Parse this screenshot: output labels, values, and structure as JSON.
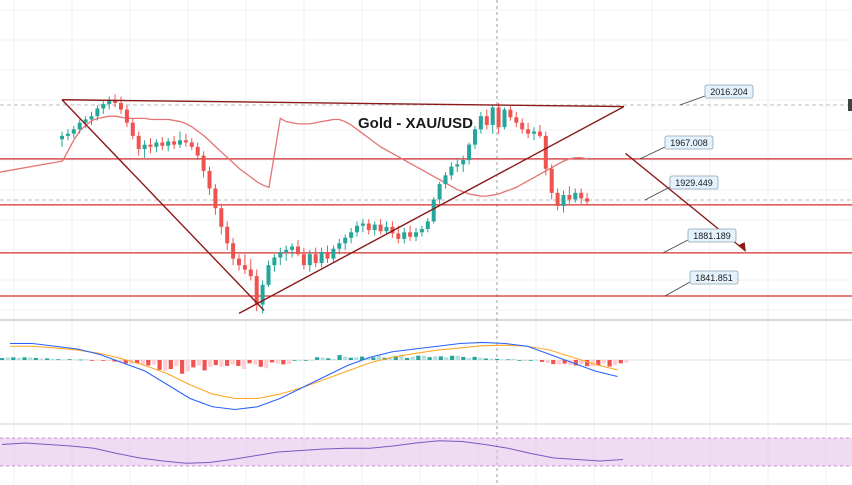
{
  "chart_data": {
    "type": "candlestick",
    "title": "Gold - XAU/USD",
    "candles": [
      {
        "o": 1985,
        "h": 1992,
        "l": 1978,
        "c": 1988
      },
      {
        "o": 1988,
        "h": 1994,
        "l": 1984,
        "c": 1990
      },
      {
        "o": 1990,
        "h": 1997,
        "l": 1986,
        "c": 1994
      },
      {
        "o": 1994,
        "h": 2003,
        "l": 1990,
        "c": 2000
      },
      {
        "o": 2000,
        "h": 2006,
        "l": 1995,
        "c": 2003
      },
      {
        "o": 2003,
        "h": 2010,
        "l": 1998,
        "c": 2006
      },
      {
        "o": 2006,
        "h": 2016,
        "l": 2002,
        "c": 2013
      },
      {
        "o": 2013,
        "h": 2020,
        "l": 2008,
        "c": 2017
      },
      {
        "o": 2017,
        "h": 2024,
        "l": 2012,
        "c": 2021
      },
      {
        "o": 2021,
        "h": 2026,
        "l": 2014,
        "c": 2018
      },
      {
        "o": 2018,
        "h": 2024,
        "l": 2008,
        "c": 2012
      },
      {
        "o": 2012,
        "h": 2016,
        "l": 1996,
        "c": 2000
      },
      {
        "o": 2000,
        "h": 2004,
        "l": 1985,
        "c": 1988
      },
      {
        "o": 1988,
        "h": 1992,
        "l": 1970,
        "c": 1976
      },
      {
        "o": 1976,
        "h": 1984,
        "l": 1968,
        "c": 1980
      },
      {
        "o": 1980,
        "h": 1986,
        "l": 1972,
        "c": 1978
      },
      {
        "o": 1978,
        "h": 1985,
        "l": 1973,
        "c": 1982
      },
      {
        "o": 1982,
        "h": 1987,
        "l": 1975,
        "c": 1979
      },
      {
        "o": 1979,
        "h": 1986,
        "l": 1974,
        "c": 1983
      },
      {
        "o": 1983,
        "h": 1988,
        "l": 1976,
        "c": 1980
      },
      {
        "o": 1980,
        "h": 1992,
        "l": 1977,
        "c": 1984
      },
      {
        "o": 1984,
        "h": 1990,
        "l": 1978,
        "c": 1982
      },
      {
        "o": 1982,
        "h": 1986,
        "l": 1975,
        "c": 1978
      },
      {
        "o": 1978,
        "h": 1982,
        "l": 1966,
        "c": 1970
      },
      {
        "o": 1970,
        "h": 1974,
        "l": 1950,
        "c": 1956
      },
      {
        "o": 1956,
        "h": 1960,
        "l": 1934,
        "c": 1940
      },
      {
        "o": 1940,
        "h": 1944,
        "l": 1916,
        "c": 1922
      },
      {
        "o": 1922,
        "h": 1926,
        "l": 1898,
        "c": 1905
      },
      {
        "o": 1905,
        "h": 1910,
        "l": 1884,
        "c": 1890
      },
      {
        "o": 1890,
        "h": 1895,
        "l": 1870,
        "c": 1876
      },
      {
        "o": 1876,
        "h": 1880,
        "l": 1865,
        "c": 1870
      },
      {
        "o": 1870,
        "h": 1880,
        "l": 1862,
        "c": 1866
      },
      {
        "o": 1866,
        "h": 1876,
        "l": 1856,
        "c": 1860
      },
      {
        "o": 1860,
        "h": 1866,
        "l": 1828,
        "c": 1834
      },
      {
        "o": 1834,
        "h": 1856,
        "l": 1826,
        "c": 1852
      },
      {
        "o": 1852,
        "h": 1874,
        "l": 1850,
        "c": 1870
      },
      {
        "o": 1870,
        "h": 1880,
        "l": 1864,
        "c": 1877
      },
      {
        "o": 1877,
        "h": 1886,
        "l": 1870,
        "c": 1882
      },
      {
        "o": 1882,
        "h": 1888,
        "l": 1874,
        "c": 1884
      },
      {
        "o": 1884,
        "h": 1890,
        "l": 1877,
        "c": 1887
      },
      {
        "o": 1887,
        "h": 1893,
        "l": 1878,
        "c": 1880
      },
      {
        "o": 1880,
        "h": 1886,
        "l": 1866,
        "c": 1870
      },
      {
        "o": 1870,
        "h": 1884,
        "l": 1864,
        "c": 1880
      },
      {
        "o": 1880,
        "h": 1886,
        "l": 1868,
        "c": 1872
      },
      {
        "o": 1872,
        "h": 1886,
        "l": 1868,
        "c": 1882
      },
      {
        "o": 1882,
        "h": 1888,
        "l": 1872,
        "c": 1876
      },
      {
        "o": 1876,
        "h": 1888,
        "l": 1873,
        "c": 1885
      },
      {
        "o": 1885,
        "h": 1894,
        "l": 1880,
        "c": 1890
      },
      {
        "o": 1890,
        "h": 1898,
        "l": 1884,
        "c": 1895
      },
      {
        "o": 1895,
        "h": 1904,
        "l": 1890,
        "c": 1900
      },
      {
        "o": 1900,
        "h": 1910,
        "l": 1896,
        "c": 1906
      },
      {
        "o": 1906,
        "h": 1912,
        "l": 1900,
        "c": 1908
      },
      {
        "o": 1908,
        "h": 1912,
        "l": 1898,
        "c": 1902
      },
      {
        "o": 1902,
        "h": 1910,
        "l": 1897,
        "c": 1907
      },
      {
        "o": 1907,
        "h": 1912,
        "l": 1898,
        "c": 1901
      },
      {
        "o": 1901,
        "h": 1910,
        "l": 1898,
        "c": 1905
      },
      {
        "o": 1905,
        "h": 1910,
        "l": 1895,
        "c": 1899
      },
      {
        "o": 1899,
        "h": 1906,
        "l": 1890,
        "c": 1894
      },
      {
        "o": 1894,
        "h": 1904,
        "l": 1890,
        "c": 1900
      },
      {
        "o": 1900,
        "h": 1906,
        "l": 1892,
        "c": 1896
      },
      {
        "o": 1896,
        "h": 1904,
        "l": 1892,
        "c": 1900
      },
      {
        "o": 1900,
        "h": 1906,
        "l": 1896,
        "c": 1903
      },
      {
        "o": 1903,
        "h": 1913,
        "l": 1900,
        "c": 1910
      },
      {
        "o": 1910,
        "h": 1932,
        "l": 1908,
        "c": 1930
      },
      {
        "o": 1930,
        "h": 1946,
        "l": 1926,
        "c": 1944
      },
      {
        "o": 1944,
        "h": 1955,
        "l": 1940,
        "c": 1952
      },
      {
        "o": 1952,
        "h": 1964,
        "l": 1948,
        "c": 1960
      },
      {
        "o": 1960,
        "h": 1968,
        "l": 1955,
        "c": 1962
      },
      {
        "o": 1962,
        "h": 1970,
        "l": 1955,
        "c": 1966
      },
      {
        "o": 1966,
        "h": 1982,
        "l": 1962,
        "c": 1980
      },
      {
        "o": 1980,
        "h": 1997,
        "l": 1976,
        "c": 1994
      },
      {
        "o": 1994,
        "h": 2010,
        "l": 1990,
        "c": 2006
      },
      {
        "o": 2006,
        "h": 2012,
        "l": 1994,
        "c": 1998
      },
      {
        "o": 1998,
        "h": 2016,
        "l": 1990,
        "c": 2014
      },
      {
        "o": 2014,
        "h": 2018,
        "l": 1990,
        "c": 1996
      },
      {
        "o": 1996,
        "h": 2014,
        "l": 1994,
        "c": 2012
      },
      {
        "o": 2012,
        "h": 2015,
        "l": 2002,
        "c": 2005
      },
      {
        "o": 2005,
        "h": 2010,
        "l": 1996,
        "c": 2000
      },
      {
        "o": 2000,
        "h": 2004,
        "l": 1990,
        "c": 1994
      },
      {
        "o": 1994,
        "h": 2000,
        "l": 1986,
        "c": 1990
      },
      {
        "o": 1990,
        "h": 1996,
        "l": 1984,
        "c": 1992
      },
      {
        "o": 1992,
        "h": 1998,
        "l": 1986,
        "c": 1988
      },
      {
        "o": 1988,
        "h": 1992,
        "l": 1952,
        "c": 1958
      },
      {
        "o": 1958,
        "h": 1962,
        "l": 1930,
        "c": 1936
      },
      {
        "o": 1936,
        "h": 1940,
        "l": 1920,
        "c": 1924
      },
      {
        "o": 1924,
        "h": 1938,
        "l": 1918,
        "c": 1934
      },
      {
        "o": 1934,
        "h": 1942,
        "l": 1926,
        "c": 1930
      },
      {
        "o": 1930,
        "h": 1940,
        "l": 1927,
        "c": 1936
      },
      {
        "o": 1936,
        "h": 1940,
        "l": 1926,
        "c": 1931
      },
      {
        "o": 1931,
        "h": 1936,
        "l": 1925,
        "c": 1928
      }
    ],
    "sma": [
      2004,
      2001,
      2000,
      1999,
      1999,
      1999,
      2000,
      2001,
      2002,
      2003,
      2003,
      2001,
      1998,
      1994,
      1990,
      1986,
      1982,
      1978,
      1975,
      1972,
      1969,
      1966,
      1963,
      1960,
      1957,
      1954,
      1951,
      1948,
      1945,
      1942,
      1939,
      1937,
      1935,
      1934,
      1933,
      1933,
      1934,
      1935,
      1937,
      1939,
      1941,
      1944,
      1947,
      1950,
      1953,
      1956,
      1959,
      1962,
      1965,
      1967,
      1968,
      1968,
      1967
    ],
    "sma_start_index": 37,
    "trendlines": [
      {
        "x1": 0,
        "y1": 2021,
        "x2": 30,
        "y2": 1826
      },
      {
        "x1": 0,
        "y1": 2021,
        "x2": 91,
        "y2": 2012
      },
      {
        "x1": 30,
        "y1": 1826,
        "x2": 91,
        "y2": 2012
      }
    ],
    "projection_arrow": {
      "x1": 95,
      "y1": 1972,
      "x2": 103,
      "y2": 1881
    },
    "levels": [
      {
        "value": 2016.204,
        "label": "2016.204"
      },
      {
        "value": 1967.008,
        "label": "1967.008"
      },
      {
        "value": 1929.449,
        "label": "1929.449"
      },
      {
        "value": 1881.189,
        "label": "1881.189"
      },
      {
        "value": 1841.851,
        "label": "1841.851"
      }
    ],
    "macd": {
      "macd_line": [
        0.3,
        0.3,
        0.25,
        0.2,
        0.1,
        -0.05,
        -0.2,
        -0.45,
        -0.7,
        -0.85,
        -0.9,
        -0.85,
        -0.7,
        -0.5,
        -0.3,
        -0.1,
        0.05,
        0.15,
        0.2,
        0.25,
        0.3,
        0.32,
        0.3,
        0.25,
        0.1,
        -0.05,
        -0.2,
        -0.3
      ],
      "signal_line": [
        0.25,
        0.25,
        0.22,
        0.18,
        0.12,
        0.02,
        -0.1,
        -0.25,
        -0.45,
        -0.62,
        -0.7,
        -0.7,
        -0.62,
        -0.5,
        -0.35,
        -0.2,
        -0.05,
        0.05,
        0.12,
        0.18,
        0.22,
        0.26,
        0.27,
        0.25,
        0.18,
        0.05,
        -0.08,
        -0.18
      ],
      "histogram": [
        0.05,
        0.05,
        0.03,
        0.02,
        -0.02,
        -0.07,
        -0.1,
        -0.2,
        -0.25,
        -0.23,
        -0.2,
        -0.15,
        -0.08,
        0,
        0.05,
        0.1,
        0.1,
        0.1,
        0.08,
        0.07,
        0.08,
        0.06,
        0.03,
        0,
        -0.08,
        -0.1,
        -0.12,
        -0.12
      ]
    },
    "rsi": [
      60,
      62,
      60,
      58,
      55,
      48,
      42,
      38,
      35,
      36,
      40,
      45,
      50,
      52,
      54,
      55,
      55,
      58,
      62,
      65,
      64,
      60,
      55,
      48,
      42,
      40,
      38,
      40
    ],
    "colors": {
      "up": "#26a69a",
      "down": "#ef5350",
      "trendline": "#8b1a1a",
      "level": "#d32f2f",
      "sma": "#e57373",
      "macd": "#2962ff",
      "signal": "#ffa726",
      "hist_up": "#26a69a",
      "hist_up_light": "#b2dfdb",
      "hist_down": "#ef5350",
      "hist_down_light": "#ffcdd2",
      "rsi": "#7e57c2",
      "rsi_band": "#e1bee7",
      "label_bg": "#e3f2fd",
      "label_border": "#90a4ae"
    }
  }
}
